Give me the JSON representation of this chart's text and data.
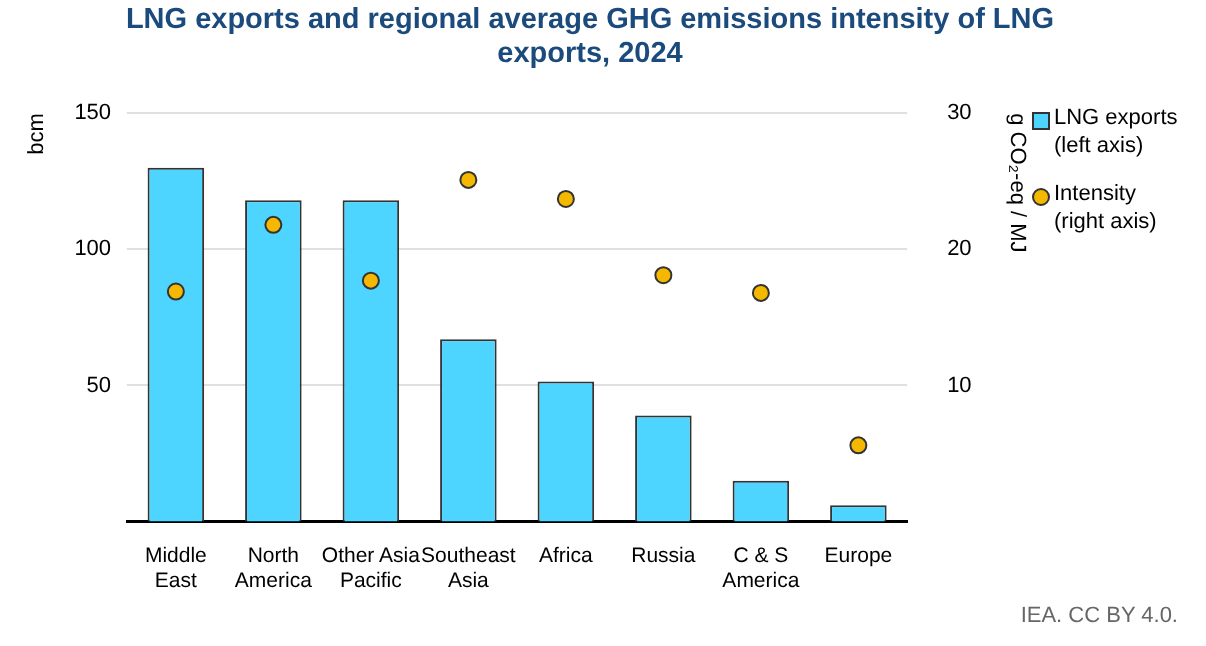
{
  "chart_data": {
    "type": "bar",
    "title": "LNG exports and regional average GHG emissions intensity of LNG exports, 2024",
    "ylabel": "bcm",
    "y2label": "g CO₂-eq / MJ",
    "annotations": [
      "IEA. CC BY 4.0."
    ],
    "categories": [
      "Middle East",
      "North America",
      "Other Asia Pacific",
      "Southeast Asia",
      "Africa",
      "Russia",
      "C & S America",
      "Europe"
    ],
    "series": [
      {
        "name": "LNG exports (left axis)",
        "color": "#4dd4ff",
        "values": [
          130,
          118,
          118,
          67,
          51.5,
          39,
          15,
          6
        ]
      },
      {
        "name": "Intensity (right axis)",
        "type": "scatter",
        "axis": "y2",
        "color": "#f5b800",
        "values": [
          16.9,
          21.8,
          17.7,
          25.1,
          23.7,
          18.1,
          16.8,
          5.6
        ]
      }
    ],
    "ylim": [
      0,
      150
    ],
    "yticks": [
      50,
      100,
      150
    ],
    "y2lim": [
      0,
      30
    ],
    "y2ticks": [
      10,
      20,
      30
    ],
    "grid": "y",
    "legend": "right",
    "marker": "circle"
  }
}
